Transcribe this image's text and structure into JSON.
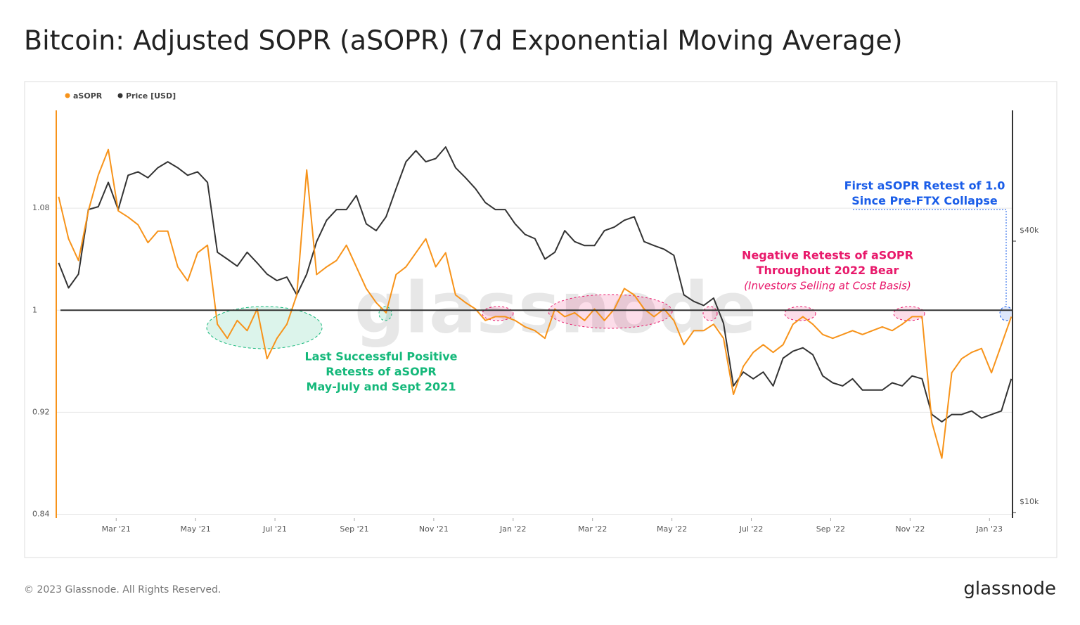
{
  "chart_data": {
    "type": "line",
    "title": "Bitcoin: Adjusted SOPR (aSOPR) (7d Exponential Moving Average)",
    "footer": "© 2023 Glassnode. All Rights Reserved.",
    "brand": "glassnode",
    "watermark": "glassnode",
    "x": [
      0.55,
      0.8,
      1.05,
      1.3,
      1.55,
      1.8,
      2.05,
      2.3,
      2.55,
      2.8,
      3.05,
      3.3,
      3.55,
      3.8,
      4.05,
      4.3,
      4.55,
      4.8,
      5.05,
      5.3,
      5.55,
      5.8,
      6.05,
      6.3,
      6.55,
      6.8,
      7.05,
      7.3,
      7.55,
      7.8,
      8.05,
      8.3,
      8.55,
      8.8,
      9.05,
      9.3,
      9.55,
      9.8,
      10.05,
      10.3,
      10.55,
      10.8,
      11.05,
      11.3,
      11.55,
      11.8,
      12.05,
      12.3,
      12.55,
      12.8,
      13.05,
      13.3,
      13.55,
      13.8,
      14.05,
      14.3,
      14.55,
      14.8,
      15.05,
      15.3,
      15.55,
      15.8,
      16.05,
      16.3,
      16.55,
      16.8,
      17.05,
      17.3,
      17.55,
      17.8,
      18.05,
      18.3,
      18.55,
      18.8,
      19.05,
      19.3,
      19.55,
      19.8,
      20.05,
      20.3,
      20.55,
      20.8,
      21.05,
      21.3,
      21.55,
      21.8,
      22.05,
      22.3,
      22.55,
      22.8,
      23.05,
      23.3,
      23.55,
      23.8,
      24.05,
      24.3,
      24.55
    ],
    "series": [
      {
        "name": "aSOPR",
        "color": "#f7931a",
        "axis": "y",
        "values": [
          1.089,
          1.056,
          1.039,
          1.078,
          1.106,
          1.126,
          1.078,
          1.073,
          1.067,
          1.053,
          1.062,
          1.062,
          1.034,
          1.023,
          1.045,
          1.051,
          0.989,
          0.978,
          0.992,
          0.984,
          1.001,
          0.962,
          0.978,
          0.989,
          1.012,
          1.11,
          1.028,
          1.034,
          1.039,
          1.051,
          1.034,
          1.017,
          1.006,
          0.998,
          1.028,
          1.034,
          1.045,
          1.056,
          1.034,
          1.045,
          1.012,
          1.006,
          1.001,
          0.992,
          0.995,
          0.995,
          0.992,
          0.987,
          0.984,
          0.978,
          1.001,
          0.995,
          0.998,
          0.992,
          1.001,
          0.992,
          1.001,
          1.017,
          1.012,
          1.001,
          0.995,
          1.001,
          0.992,
          0.973,
          0.984,
          0.984,
          0.989,
          0.978,
          0.934,
          0.956,
          0.967,
          0.973,
          0.967,
          0.973,
          0.989,
          0.995,
          0.989,
          0.981,
          0.978,
          0.981,
          0.984,
          0.981,
          0.984,
          0.987,
          0.984,
          0.989,
          0.995,
          0.995,
          0.912,
          0.884,
          0.951,
          0.962,
          0.967,
          0.97,
          0.951,
          0.973,
          0.995
        ]
      },
      {
        "name": "Price [USD]",
        "color": "#333333",
        "axis": "y2",
        "values": [
          35800,
          31500,
          33800,
          47000,
          47700,
          54000,
          47000,
          56000,
          57000,
          55300,
          58200,
          60000,
          58200,
          56000,
          57000,
          54000,
          37800,
          36500,
          35200,
          37800,
          35800,
          33800,
          32700,
          33300,
          30400,
          33800,
          39900,
          44500,
          47000,
          47000,
          50500,
          43700,
          42200,
          45300,
          52300,
          60000,
          63500,
          60000,
          61000,
          64700,
          58200,
          55300,
          52300,
          48700,
          47000,
          47000,
          43700,
          41400,
          40500,
          36500,
          37800,
          42200,
          39900,
          39100,
          39100,
          42200,
          43000,
          44500,
          45300,
          39900,
          39100,
          38400,
          37200,
          30400,
          29400,
          28800,
          29900,
          26300,
          19100,
          20500,
          19800,
          20500,
          19100,
          22000,
          22800,
          23200,
          22400,
          20100,
          19400,
          19100,
          19800,
          18700,
          18700,
          18700,
          19400,
          19100,
          20100,
          19800,
          16500,
          15900,
          16500,
          16500,
          16800,
          16200,
          16500,
          16800,
          19800
        ]
      }
    ],
    "xlim": [
      0.49,
      24.58
    ],
    "xticks": [
      {
        "value": 2,
        "label": "Mar '21"
      },
      {
        "value": 4,
        "label": "May '21"
      },
      {
        "value": 6,
        "label": "Jul '21"
      },
      {
        "value": 8,
        "label": "Sep '21"
      },
      {
        "value": 10,
        "label": "Nov '21"
      },
      {
        "value": 12,
        "label": "Jan '22"
      },
      {
        "value": 14,
        "label": "Mar '22"
      },
      {
        "value": 16,
        "label": "May '22"
      },
      {
        "value": 18,
        "label": "Jul '22"
      },
      {
        "value": 20,
        "label": "Sep '22"
      },
      {
        "value": 22,
        "label": "Nov '22"
      },
      {
        "value": 24,
        "label": "Jan '23"
      }
    ],
    "ylim": [
      0.837,
      1.1567
    ],
    "yticks": [
      0.84,
      0.92,
      1,
      1.08
    ],
    "y2lim": [
      9720,
      78000
    ],
    "y2ticks": [
      {
        "value": 10000,
        "label": "$10k"
      },
      {
        "value": 40000,
        "label": "$40k"
      }
    ],
    "y2_log": true,
    "grid": true,
    "reference_line": 1,
    "annotations": [
      {
        "lines": [
          "Last Successful Positive",
          "Retests of aSOPR",
          "May-July and Sept 2021"
        ],
        "color": "#14b87a"
      },
      {
        "lines": [
          "Negative Retests of aSOPR",
          "Throughout 2022 Bear"
        ],
        "note": "(Investors Selling at Cost Basis)",
        "color": "#e8196b"
      },
      {
        "lines": [
          "First aSOPR Retest of 1.0",
          "Since Pre-FTX Collapse"
        ],
        "color": "#1a5de8"
      }
    ]
  }
}
